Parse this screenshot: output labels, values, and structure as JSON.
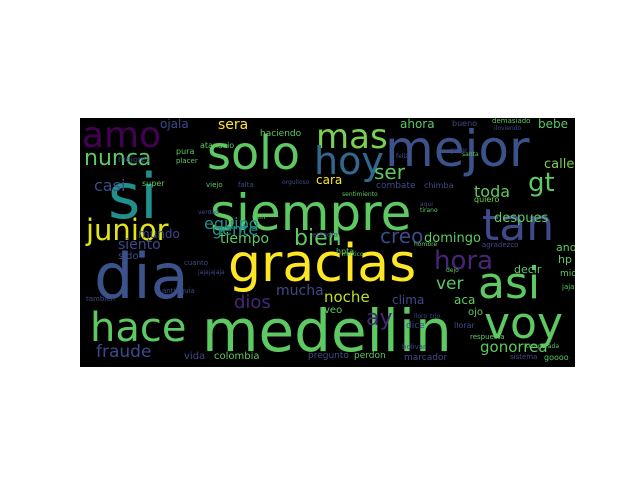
{
  "cloud": {
    "words": [
      {
        "text": "si",
        "color": "#21908d"
      },
      {
        "text": "siempre",
        "color": "#5ec962"
      },
      {
        "text": "gracias",
        "color": "#fde725"
      },
      {
        "text": "dia",
        "color": "#3b528b"
      },
      {
        "text": "medellin",
        "color": "#5ec962"
      },
      {
        "text": "mejor",
        "color": "#3b528b"
      },
      {
        "text": "solo",
        "color": "#5ec962"
      },
      {
        "text": "mas",
        "color": "#7ad151"
      },
      {
        "text": "hoy",
        "color": "#31688e"
      },
      {
        "text": "amo",
        "color": "#440154"
      },
      {
        "text": "tan",
        "color": "#3e4a89"
      },
      {
        "text": "asi",
        "color": "#5ec962"
      },
      {
        "text": "hace",
        "color": "#5ec962"
      },
      {
        "text": "voy",
        "color": "#5ec962"
      },
      {
        "text": "junior",
        "color": "#e2e418"
      },
      {
        "text": "nunca",
        "color": "#5ec962"
      },
      {
        "text": "hora",
        "color": "#482677"
      },
      {
        "text": "gt",
        "color": "#5ec962"
      },
      {
        "text": "ser",
        "color": "#5ec962"
      },
      {
        "text": "toda",
        "color": "#5ec962"
      },
      {
        "text": "bien",
        "color": "#5ec962"
      },
      {
        "text": "creo",
        "color": "#3e4a89"
      },
      {
        "text": "fraude",
        "color": "#3e4a89"
      },
      {
        "text": "noche",
        "color": "#bddf26"
      },
      {
        "text": "gonorrea",
        "color": "#5ec962"
      },
      {
        "text": "ay",
        "color": "#482677"
      },
      {
        "text": "gente",
        "color": "#21908d"
      },
      {
        "text": "casi",
        "color": "#3e4a89"
      },
      {
        "text": "ver",
        "color": "#5ec962"
      },
      {
        "text": "equipo",
        "color": "#21908d"
      },
      {
        "text": "dios",
        "color": "#482677"
      },
      {
        "text": "mucha",
        "color": "#3e4a89"
      },
      {
        "text": "siento",
        "color": "#3e4a89"
      },
      {
        "text": "tiempo",
        "color": "#5ec962"
      },
      {
        "text": "sera",
        "color": "#fde725"
      },
      {
        "text": "ojala",
        "color": "#3e4a89"
      },
      {
        "text": "calle",
        "color": "#7ad151"
      },
      {
        "text": "despues",
        "color": "#5ec962"
      },
      {
        "text": "domingo",
        "color": "#5ec962"
      },
      {
        "text": "mundo",
        "color": "#3e4a89"
      },
      {
        "text": "cara",
        "color": "#fde725"
      },
      {
        "text": "ahora",
        "color": "#5ec962"
      },
      {
        "text": "bebe",
        "color": "#5ec962"
      },
      {
        "text": "hp",
        "color": "#5ec962"
      },
      {
        "text": "ano",
        "color": "#5ec962"
      },
      {
        "text": "clima",
        "color": "#3e4a89"
      },
      {
        "text": "aca",
        "color": "#5ec962"
      },
      {
        "text": "ojo",
        "color": "#5ec962"
      },
      {
        "text": "decir",
        "color": "#5ec962"
      },
      {
        "text": "colombia",
        "color": "#5ec962"
      },
      {
        "text": "vida",
        "color": "#3e4a89"
      },
      {
        "text": "sido",
        "color": "#3e4a89"
      },
      {
        "text": "veo",
        "color": "#5ec962"
      },
      {
        "text": "dice",
        "color": "#3e4a89"
      },
      {
        "text": "marcador",
        "color": "#3e4a89"
      },
      {
        "text": "perdon",
        "color": "#5ec962"
      },
      {
        "text": "pregunto",
        "color": "#3e4a89"
      },
      {
        "text": "mio",
        "color": "#5ec962"
      },
      {
        "text": "quiero",
        "color": "#7ad151"
      },
      {
        "text": "combate",
        "color": "#3e4a89"
      },
      {
        "text": "haciendo",
        "color": "#5ec962"
      },
      {
        "text": "atanasio",
        "color": "#5ec962"
      },
      {
        "text": "pura",
        "color": "#5ec962"
      },
      {
        "text": "super",
        "color": "#5ec962"
      },
      {
        "text": "mejores",
        "color": "#3e4a89"
      },
      {
        "text": "bueno",
        "color": "#3e4a89"
      },
      {
        "text": "demasiado",
        "color": "#5ec962"
      },
      {
        "text": "llorar",
        "color": "#3e4a89"
      },
      {
        "text": "hpta",
        "color": "#5ec962"
      },
      {
        "text": "estadio",
        "color": "#3e4a89"
      },
      {
        "text": "bolivar",
        "color": "#3e4a89"
      },
      {
        "text": "tambien",
        "color": "#3e4a89"
      },
      {
        "text": "antioquia",
        "color": "#3e4a89"
      },
      {
        "text": "cuanto",
        "color": "#3e4a89"
      },
      {
        "text": "jajajajaja",
        "color": "#3e4a89"
      },
      {
        "text": "jaja",
        "color": "#5ec962"
      },
      {
        "text": "goooo",
        "color": "#5ec962"
      },
      {
        "text": "sistema",
        "color": "#3e4a89"
      },
      {
        "text": "respuesta",
        "color": "#5ec962"
      },
      {
        "text": "agradezco",
        "color": "#3e4a89"
      },
      {
        "text": "hombre",
        "color": "#5ec962"
      },
      {
        "text": "chimba",
        "color": "#3e4a89"
      },
      {
        "text": "tirano",
        "color": "#5ec962"
      },
      {
        "text": "aqui",
        "color": "#3e4a89"
      },
      {
        "text": "viejo",
        "color": "#5ec962"
      },
      {
        "text": "falta",
        "color": "#3e4a89"
      },
      {
        "text": "rain",
        "color": "#5ec962"
      },
      {
        "text": "verdad",
        "color": "#3e4a89"
      },
      {
        "text": "sentimiento",
        "color": "#5ec962"
      },
      {
        "text": "orgulloso",
        "color": "#3e4a89"
      },
      {
        "text": "placer",
        "color": "#5ec962"
      },
      {
        "text": "iloviendo",
        "color": "#3e4a89"
      },
      {
        "text": "temporada",
        "color": "#5ec962"
      },
      {
        "text": "ganar",
        "color": "#3e4a89"
      },
      {
        "text": "mexico",
        "color": "#5ec962"
      },
      {
        "text": "lloro",
        "color": "#3e4a89"
      },
      {
        "text": "dejo",
        "color": "#5ec962"
      },
      {
        "text": "trio",
        "color": "#3e4a89"
      },
      {
        "text": "santa",
        "color": "#5ec962"
      },
      {
        "text": "feliz",
        "color": "#3e4a89"
      }
    ]
  }
}
